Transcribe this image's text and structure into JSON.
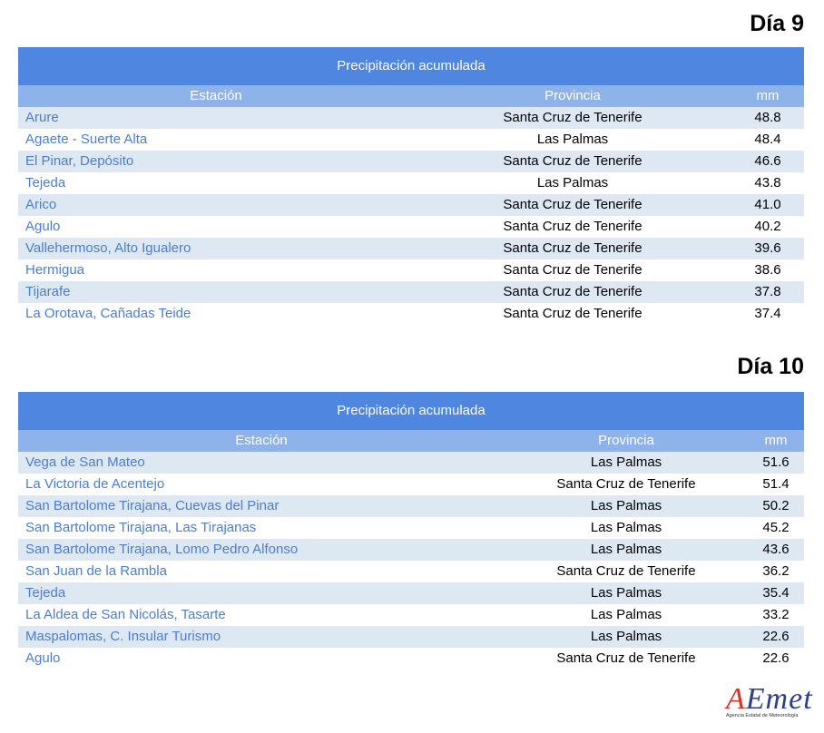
{
  "sections": [
    {
      "heading": "Día 9",
      "table": {
        "title": "Precipitación acumulada",
        "headers": [
          "Estación",
          "Provincia",
          "mm"
        ],
        "rows": [
          [
            "Arure",
            "Santa Cruz de Tenerife",
            "48.8"
          ],
          [
            "Agaete - Suerte Alta",
            "Las Palmas",
            "48.4"
          ],
          [
            "El Pinar, Depósito",
            "Santa Cruz de Tenerife",
            "46.6"
          ],
          [
            "Tejeda",
            "Las Palmas",
            "43.8"
          ],
          [
            "Arico",
            "Santa Cruz de Tenerife",
            "41.0"
          ],
          [
            "Agulo",
            "Santa Cruz de Tenerife",
            "40.2"
          ],
          [
            "Vallehermoso, Alto Igualero",
            "Santa Cruz de Tenerife",
            "39.6"
          ],
          [
            "Hermigua",
            "Santa Cruz de Tenerife",
            "38.6"
          ],
          [
            "Tijarafe",
            "Santa Cruz de Tenerife",
            "37.8"
          ],
          [
            "La Orotava, Cañadas Teide",
            "Santa Cruz de Tenerife",
            "37.4"
          ]
        ]
      }
    },
    {
      "heading": "Día 10",
      "table": {
        "title": "Precipitación acumulada",
        "headers": [
          "Estación",
          "Provincia",
          "mm"
        ],
        "rows": [
          [
            "Vega de San Mateo",
            "Las Palmas",
            "51.6"
          ],
          [
            "La Victoria de Acentejo",
            "Santa Cruz de Tenerife",
            "51.4"
          ],
          [
            "San Bartolome Tirajana, Cuevas del Pinar",
            "Las Palmas",
            "50.2"
          ],
          [
            "San Bartolome Tirajana, Las Tirajanas",
            "Las Palmas",
            "45.2"
          ],
          [
            "San Bartolome Tirajana, Lomo Pedro Alfonso",
            "Las Palmas",
            "43.6"
          ],
          [
            "San Juan de la Rambla",
            "Santa Cruz de Tenerife",
            "36.2"
          ],
          [
            "Tejeda",
            "Las Palmas",
            "35.4"
          ],
          [
            "La Aldea de San Nicolás, Tasarte",
            "Las Palmas",
            "33.2"
          ],
          [
            "Maspalomas, C. Insular Turismo",
            "Las Palmas",
            "22.6"
          ],
          [
            "Agulo",
            "Santa Cruz de Tenerife",
            "22.6"
          ]
        ]
      }
    }
  ],
  "logo": {
    "name": "AEmet",
    "subtitle": "Agencia Estatal de Meteorología"
  }
}
